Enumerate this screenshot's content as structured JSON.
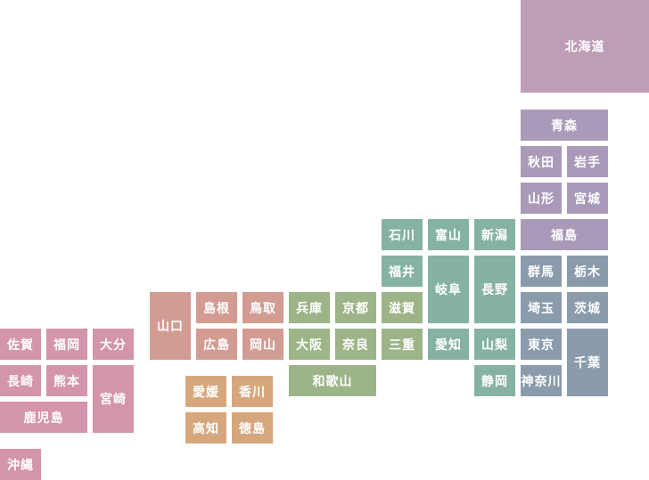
{
  "map": {
    "region_colors": {
      "hokkaido": "#be9db6",
      "tohoku": "#a99ab9",
      "kanto": "#8a9bac",
      "chubu": "#86b2a1",
      "kinki": "#9cb487",
      "chugoku": "#d29c92",
      "shikoku": "#d6a77c",
      "kyushu": "#d394ac"
    },
    "prefectures": [
      {
        "id": "hokkaido",
        "name": "北海道",
        "region": "hokkaido"
      },
      {
        "id": "aomori",
        "name": "青森",
        "region": "tohoku"
      },
      {
        "id": "akita",
        "name": "秋田",
        "region": "tohoku"
      },
      {
        "id": "iwate",
        "name": "岩手",
        "region": "tohoku"
      },
      {
        "id": "yamagata",
        "name": "山形",
        "region": "tohoku"
      },
      {
        "id": "miyagi",
        "name": "宮城",
        "region": "tohoku"
      },
      {
        "id": "fukushima",
        "name": "福島",
        "region": "tohoku"
      },
      {
        "id": "ishikawa",
        "name": "石川",
        "region": "chubu"
      },
      {
        "id": "toyama",
        "name": "富山",
        "region": "chubu"
      },
      {
        "id": "niigata",
        "name": "新潟",
        "region": "chubu"
      },
      {
        "id": "fukui",
        "name": "福井",
        "region": "chubu"
      },
      {
        "id": "gifu",
        "name": "岐阜",
        "region": "chubu"
      },
      {
        "id": "nagano",
        "name": "長野",
        "region": "chubu"
      },
      {
        "id": "gunma",
        "name": "群馬",
        "region": "kanto"
      },
      {
        "id": "tochigi",
        "name": "栃木",
        "region": "kanto"
      },
      {
        "id": "shimane",
        "name": "島根",
        "region": "chugoku"
      },
      {
        "id": "tottori",
        "name": "鳥取",
        "region": "chugoku"
      },
      {
        "id": "hyogo",
        "name": "兵庫",
        "region": "kinki"
      },
      {
        "id": "kyoto",
        "name": "京都",
        "region": "kinki"
      },
      {
        "id": "shiga",
        "name": "滋賀",
        "region": "kinki"
      },
      {
        "id": "saitama",
        "name": "埼玉",
        "region": "kanto"
      },
      {
        "id": "ibaraki",
        "name": "茨城",
        "region": "kanto"
      },
      {
        "id": "yamaguchi",
        "name": "山口",
        "region": "chugoku"
      },
      {
        "id": "hiroshima",
        "name": "広島",
        "region": "chugoku"
      },
      {
        "id": "okayama",
        "name": "岡山",
        "region": "chugoku"
      },
      {
        "id": "osaka",
        "name": "大阪",
        "region": "kinki"
      },
      {
        "id": "nara",
        "name": "奈良",
        "region": "kinki"
      },
      {
        "id": "mie",
        "name": "三重",
        "region": "kinki"
      },
      {
        "id": "aichi",
        "name": "愛知",
        "region": "chubu"
      },
      {
        "id": "yamanashi",
        "name": "山梨",
        "region": "chubu"
      },
      {
        "id": "tokyo",
        "name": "東京",
        "region": "kanto"
      },
      {
        "id": "chiba",
        "name": "千葉",
        "region": "kanto"
      },
      {
        "id": "saga",
        "name": "佐賀",
        "region": "kyushu"
      },
      {
        "id": "fukuoka",
        "name": "福岡",
        "region": "kyushu"
      },
      {
        "id": "oita",
        "name": "大分",
        "region": "kyushu"
      },
      {
        "id": "wakayama",
        "name": "和歌山",
        "region": "kinki"
      },
      {
        "id": "shizuoka",
        "name": "静岡",
        "region": "chubu"
      },
      {
        "id": "kanagawa",
        "name": "神奈川",
        "region": "kanto"
      },
      {
        "id": "nagasaki",
        "name": "長崎",
        "region": "kyushu"
      },
      {
        "id": "kumamoto",
        "name": "熊本",
        "region": "kyushu"
      },
      {
        "id": "miyazaki",
        "name": "宮崎",
        "region": "kyushu"
      },
      {
        "id": "ehime",
        "name": "愛媛",
        "region": "shikoku"
      },
      {
        "id": "kagawa",
        "name": "香川",
        "region": "shikoku"
      },
      {
        "id": "kagoshima",
        "name": "鹿児島",
        "region": "kyushu"
      },
      {
        "id": "kochi",
        "name": "高知",
        "region": "shikoku"
      },
      {
        "id": "tokushima",
        "name": "徳島",
        "region": "shikoku"
      },
      {
        "id": "okinawa",
        "name": "沖縄",
        "region": "kyushu"
      }
    ]
  }
}
